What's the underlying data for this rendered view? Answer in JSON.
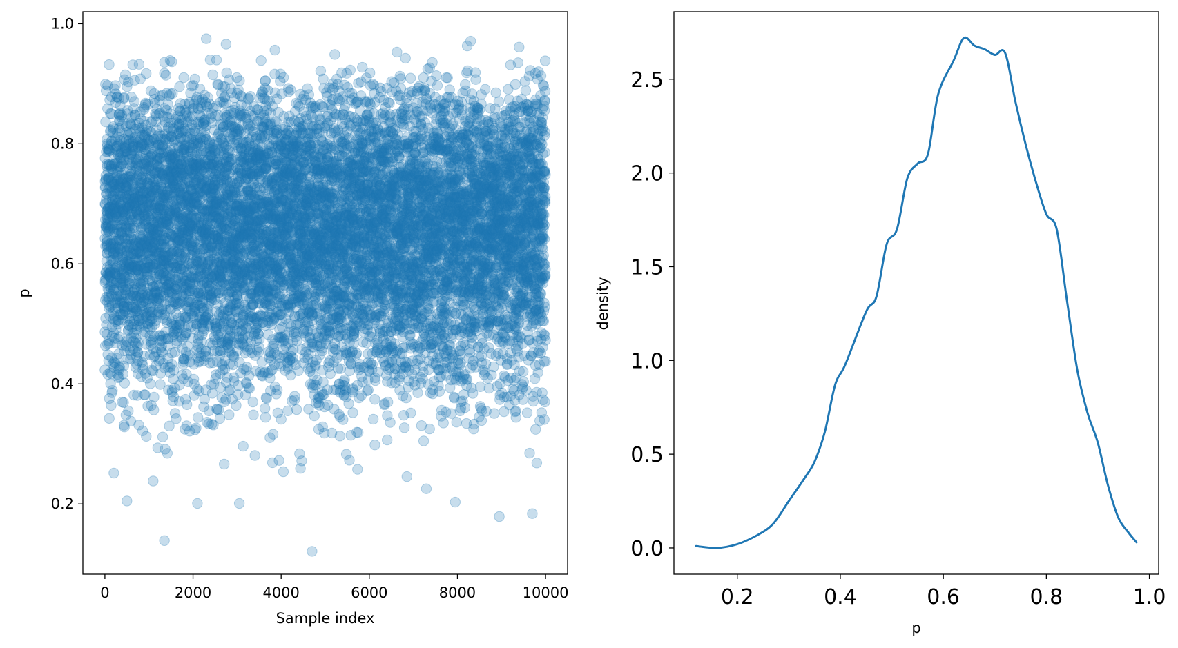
{
  "chart_data": [
    {
      "type": "scatter",
      "title": "",
      "xlabel": "Sample index",
      "ylabel": "p",
      "xlim": [
        -500,
        10500
      ],
      "ylim": [
        0.083,
        1.02
      ],
      "xticks": [
        0,
        2000,
        4000,
        6000,
        8000,
        10000
      ],
      "xtick_labels": [
        "0",
        "2000",
        "4000",
        "6000",
        "8000",
        "10000"
      ],
      "yticks": [
        0.2,
        0.4,
        0.6,
        0.8,
        1.0
      ],
      "ytick_labels": [
        "0.2",
        "0.4",
        "0.6",
        "0.8",
        "1.0"
      ],
      "grid": false,
      "legend": "none",
      "color": "#1f77b4",
      "marker_alpha": 0.25,
      "n_samples": 10000,
      "sample_summary": {
        "mode": 0.66,
        "min": 0.12,
        "max": 0.975
      },
      "notable_points": [
        {
          "x": 4700,
          "y": 0.121
        },
        {
          "x": 1350,
          "y": 0.139
        },
        {
          "x": 8950,
          "y": 0.179
        },
        {
          "x": 9700,
          "y": 0.184
        },
        {
          "x": 500,
          "y": 0.205
        },
        {
          "x": 2100,
          "y": 0.201
        },
        {
          "x": 3050,
          "y": 0.201
        },
        {
          "x": 7950,
          "y": 0.203
        },
        {
          "x": 2300,
          "y": 0.975
        },
        {
          "x": 8300,
          "y": 0.971
        },
        {
          "x": 2750,
          "y": 0.966
        },
        {
          "x": 9400,
          "y": 0.961
        }
      ]
    },
    {
      "type": "line",
      "title": "",
      "xlabel": "p",
      "ylabel": "density",
      "xlim": [
        0.077,
        1.018
      ],
      "ylim": [
        -0.14,
        2.86
      ],
      "xticks": [
        0.2,
        0.4,
        0.6,
        0.8,
        1.0
      ],
      "xtick_labels": [
        "0.2",
        "0.4",
        "0.6",
        "0.8",
        "1.0"
      ],
      "yticks": [
        0.0,
        0.5,
        1.0,
        1.5,
        2.0,
        2.5
      ],
      "ytick_labels": [
        "0.0",
        "0.5",
        "1.0",
        "1.5",
        "2.0",
        "2.5"
      ],
      "grid": false,
      "legend": "none",
      "color": "#1f77b4",
      "x": [
        0.12,
        0.16,
        0.2,
        0.24,
        0.27,
        0.3,
        0.33,
        0.35,
        0.37,
        0.39,
        0.41,
        0.45,
        0.47,
        0.49,
        0.51,
        0.53,
        0.55,
        0.57,
        0.59,
        0.62,
        0.64,
        0.66,
        0.68,
        0.7,
        0.72,
        0.74,
        0.76,
        0.78,
        0.8,
        0.82,
        0.84,
        0.86,
        0.88,
        0.9,
        0.92,
        0.94,
        0.96,
        0.975
      ],
      "y": [
        0.01,
        0.0,
        0.02,
        0.07,
        0.13,
        0.25,
        0.37,
        0.46,
        0.62,
        0.87,
        0.98,
        1.26,
        1.34,
        1.62,
        1.7,
        1.97,
        2.05,
        2.1,
        2.42,
        2.6,
        2.72,
        2.68,
        2.66,
        2.63,
        2.64,
        2.38,
        2.15,
        1.95,
        1.78,
        1.7,
        1.32,
        0.95,
        0.72,
        0.56,
        0.33,
        0.16,
        0.08,
        0.03
      ]
    }
  ]
}
